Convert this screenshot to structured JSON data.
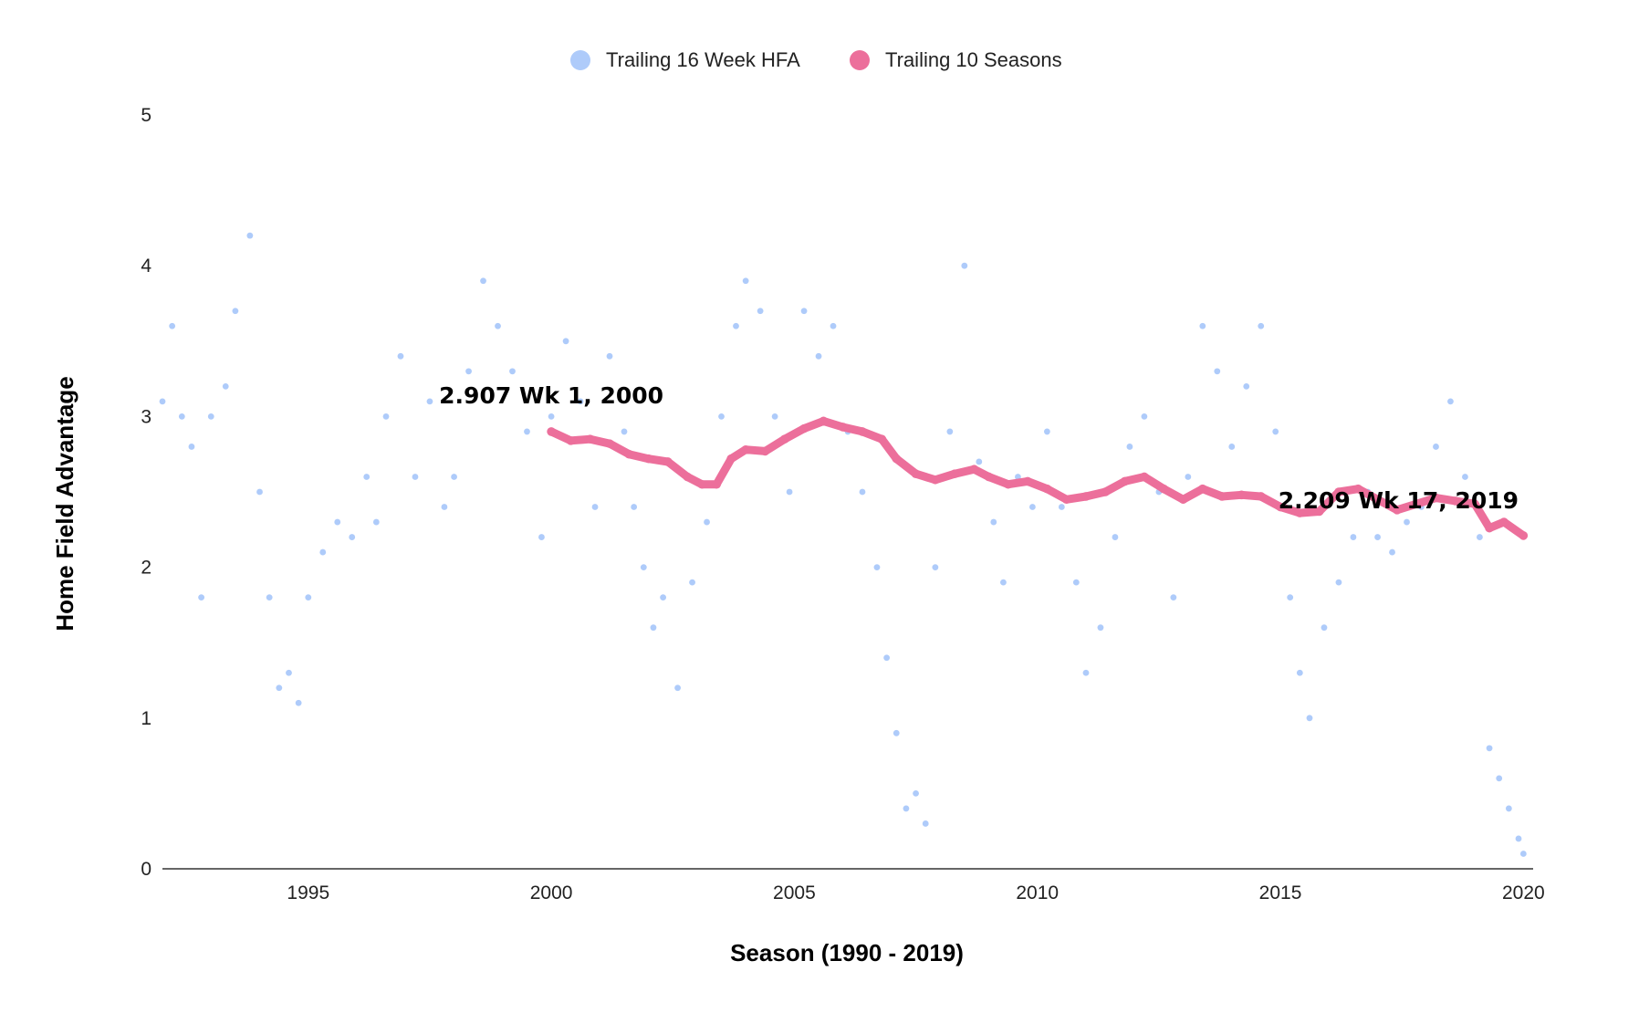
{
  "chart_data": {
    "type": "scatter",
    "title": "",
    "xlabel": "Season (1990 - 2019)",
    "ylabel": "Home Field Advantage",
    "xlim": [
      1992,
      2020.2
    ],
    "ylim": [
      0,
      5
    ],
    "x_ticks": [
      1995,
      2000,
      2005,
      2010,
      2015,
      2020
    ],
    "y_ticks": [
      0,
      1,
      2,
      3,
      4,
      5
    ],
    "grid": false,
    "legend_position": "top-center",
    "series": [
      {
        "name": "Trailing 16 Week HFA",
        "color": "#aecbfa",
        "marker": "dot",
        "points": [
          [
            1992.0,
            3.1
          ],
          [
            1992.2,
            3.6
          ],
          [
            1992.4,
            3.0
          ],
          [
            1992.6,
            2.8
          ],
          [
            1992.8,
            1.8
          ],
          [
            1993.0,
            3.0
          ],
          [
            1993.3,
            3.2
          ],
          [
            1993.5,
            3.7
          ],
          [
            1993.8,
            4.2
          ],
          [
            1994.0,
            2.5
          ],
          [
            1994.2,
            1.8
          ],
          [
            1994.4,
            1.2
          ],
          [
            1994.6,
            1.3
          ],
          [
            1994.8,
            1.1
          ],
          [
            1995.0,
            1.8
          ],
          [
            1995.3,
            2.1
          ],
          [
            1995.6,
            2.3
          ],
          [
            1995.9,
            2.2
          ],
          [
            1996.2,
            2.6
          ],
          [
            1996.4,
            2.3
          ],
          [
            1996.6,
            3.0
          ],
          [
            1996.9,
            3.4
          ],
          [
            1997.2,
            2.6
          ],
          [
            1997.5,
            3.1
          ],
          [
            1997.8,
            2.4
          ],
          [
            1998.0,
            2.6
          ],
          [
            1998.3,
            3.3
          ],
          [
            1998.6,
            3.9
          ],
          [
            1998.9,
            3.6
          ],
          [
            1999.2,
            3.3
          ],
          [
            1999.5,
            2.9
          ],
          [
            1999.8,
            2.2
          ],
          [
            2000.0,
            3.0
          ],
          [
            2000.3,
            3.5
          ],
          [
            2000.6,
            3.1
          ],
          [
            2000.9,
            2.4
          ],
          [
            2001.2,
            3.4
          ],
          [
            2001.5,
            2.9
          ],
          [
            2001.7,
            2.4
          ],
          [
            2001.9,
            2.0
          ],
          [
            2002.1,
            1.6
          ],
          [
            2002.3,
            1.8
          ],
          [
            2002.6,
            1.2
          ],
          [
            2002.9,
            1.9
          ],
          [
            2003.2,
            2.3
          ],
          [
            2003.5,
            3.0
          ],
          [
            2003.8,
            3.6
          ],
          [
            2004.0,
            3.9
          ],
          [
            2004.3,
            3.7
          ],
          [
            2004.6,
            3.0
          ],
          [
            2004.9,
            2.5
          ],
          [
            2005.2,
            3.7
          ],
          [
            2005.5,
            3.4
          ],
          [
            2005.8,
            3.6
          ],
          [
            2006.1,
            2.9
          ],
          [
            2006.4,
            2.5
          ],
          [
            2006.7,
            2.0
          ],
          [
            2006.9,
            1.4
          ],
          [
            2007.1,
            0.9
          ],
          [
            2007.3,
            0.4
          ],
          [
            2007.5,
            0.5
          ],
          [
            2007.7,
            0.3
          ],
          [
            2007.9,
            2.0
          ],
          [
            2008.2,
            2.9
          ],
          [
            2008.5,
            4.0
          ],
          [
            2008.8,
            2.7
          ],
          [
            2009.1,
            2.3
          ],
          [
            2009.3,
            1.9
          ],
          [
            2009.6,
            2.6
          ],
          [
            2009.9,
            2.4
          ],
          [
            2010.2,
            2.9
          ],
          [
            2010.5,
            2.4
          ],
          [
            2010.8,
            1.9
          ],
          [
            2011.0,
            1.3
          ],
          [
            2011.3,
            1.6
          ],
          [
            2011.6,
            2.2
          ],
          [
            2011.9,
            2.8
          ],
          [
            2012.2,
            3.0
          ],
          [
            2012.5,
            2.5
          ],
          [
            2012.8,
            1.8
          ],
          [
            2013.1,
            2.6
          ],
          [
            2013.4,
            3.6
          ],
          [
            2013.7,
            3.3
          ],
          [
            2014.0,
            2.8
          ],
          [
            2014.3,
            3.2
          ],
          [
            2014.6,
            3.6
          ],
          [
            2014.9,
            2.9
          ],
          [
            2015.2,
            1.8
          ],
          [
            2015.4,
            1.3
          ],
          [
            2015.6,
            1.0
          ],
          [
            2015.9,
            1.6
          ],
          [
            2016.2,
            1.9
          ],
          [
            2016.5,
            2.2
          ],
          [
            2016.8,
            2.5
          ],
          [
            2017.0,
            2.2
          ],
          [
            2017.3,
            2.1
          ],
          [
            2017.6,
            2.3
          ],
          [
            2017.9,
            2.4
          ],
          [
            2018.2,
            2.8
          ],
          [
            2018.5,
            3.1
          ],
          [
            2018.8,
            2.6
          ],
          [
            2019.1,
            2.2
          ],
          [
            2019.3,
            0.8
          ],
          [
            2019.5,
            0.6
          ],
          [
            2019.7,
            0.4
          ],
          [
            2019.9,
            0.2
          ],
          [
            2020.0,
            0.1
          ]
        ]
      },
      {
        "name": "Trailing 10 Seasons",
        "color": "#ec6f9b",
        "marker": "dot",
        "points": [
          [
            2000.0,
            2.9
          ],
          [
            2000.4,
            2.84
          ],
          [
            2000.8,
            2.85
          ],
          [
            2001.2,
            2.82
          ],
          [
            2001.6,
            2.75
          ],
          [
            2002.0,
            2.72
          ],
          [
            2002.4,
            2.7
          ],
          [
            2002.8,
            2.6
          ],
          [
            2003.1,
            2.55
          ],
          [
            2003.4,
            2.55
          ],
          [
            2003.7,
            2.72
          ],
          [
            2004.0,
            2.78
          ],
          [
            2004.4,
            2.77
          ],
          [
            2004.8,
            2.85
          ],
          [
            2005.2,
            2.92
          ],
          [
            2005.6,
            2.97
          ],
          [
            2006.0,
            2.93
          ],
          [
            2006.4,
            2.9
          ],
          [
            2006.8,
            2.85
          ],
          [
            2007.1,
            2.72
          ],
          [
            2007.5,
            2.62
          ],
          [
            2007.9,
            2.58
          ],
          [
            2008.3,
            2.62
          ],
          [
            2008.7,
            2.65
          ],
          [
            2009.0,
            2.6
          ],
          [
            2009.4,
            2.55
          ],
          [
            2009.8,
            2.57
          ],
          [
            2010.2,
            2.52
          ],
          [
            2010.6,
            2.45
          ],
          [
            2011.0,
            2.47
          ],
          [
            2011.4,
            2.5
          ],
          [
            2011.8,
            2.57
          ],
          [
            2012.2,
            2.6
          ],
          [
            2012.6,
            2.52
          ],
          [
            2013.0,
            2.45
          ],
          [
            2013.4,
            2.52
          ],
          [
            2013.8,
            2.47
          ],
          [
            2014.2,
            2.48
          ],
          [
            2014.6,
            2.47
          ],
          [
            2015.0,
            2.4
          ],
          [
            2015.4,
            2.36
          ],
          [
            2015.8,
            2.37
          ],
          [
            2016.2,
            2.5
          ],
          [
            2016.6,
            2.52
          ],
          [
            2017.0,
            2.45
          ],
          [
            2017.4,
            2.38
          ],
          [
            2017.8,
            2.42
          ],
          [
            2018.2,
            2.46
          ],
          [
            2018.6,
            2.44
          ],
          [
            2019.0,
            2.42
          ],
          [
            2019.3,
            2.26
          ],
          [
            2019.6,
            2.3
          ],
          [
            2020.0,
            2.21
          ]
        ]
      }
    ],
    "annotations": [
      {
        "text": "2.907 Wk 1, 2000",
        "x": 2000.0,
        "y": 2.907
      },
      {
        "text": "2.209 Wk 17, 2019",
        "x": 2019.9,
        "y": 2.209
      }
    ]
  }
}
